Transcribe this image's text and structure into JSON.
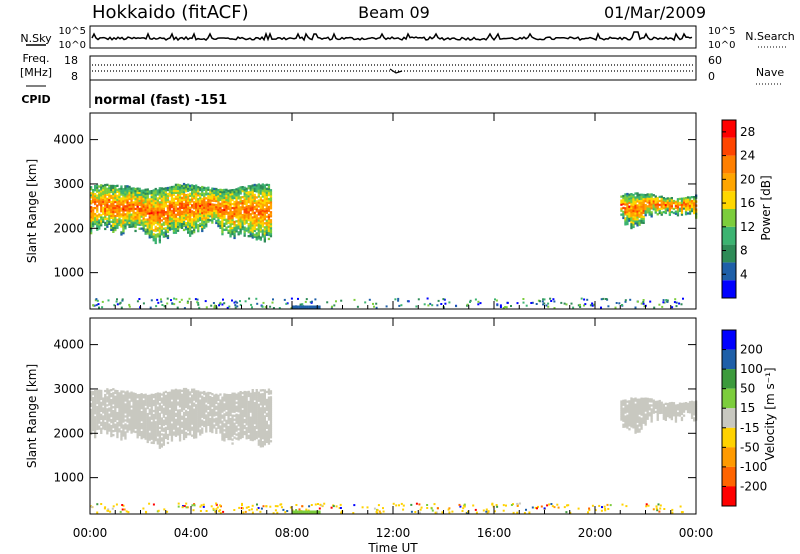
{
  "header": {
    "station": "Hokkaido (fitACF)",
    "beam": "Beam 09",
    "date": "01/Mar/2009"
  },
  "top_panels": {
    "nsky_label": "N.Sky",
    "nsearch_label": "N.Search",
    "noise_ticks": [
      "10^5",
      "10^0"
    ],
    "freq_label": "Freq.",
    "freq_unit": "[MHz]",
    "freq_ticks": [
      "18",
      "8"
    ],
    "nave_label": "Nave",
    "nave_ticks": [
      "60",
      "0"
    ],
    "cpid_label": "CPID",
    "cpid_value": "normal (fast) -151"
  },
  "colors": {
    "power_scale": [
      "#0000ff",
      "#1e5fa8",
      "#2e8b57",
      "#3cb371",
      "#7ccd3c",
      "#ffd700",
      "#ffa500",
      "#ff7f00",
      "#ff4500",
      "#ff0000"
    ],
    "velocity_scale": [
      "#ff0000",
      "#ff6400",
      "#ff9a00",
      "#ffd200",
      "#c8c8c0",
      "#7ccd3c",
      "#3c9a3c",
      "#1e5fa8",
      "#0000ff"
    ],
    "ground_scatter": "#c8c8c0"
  },
  "chart_data": [
    {
      "type": "heatmap",
      "panel": "power",
      "ylabel": "Slant Range [km]",
      "xlabel": "Time UT",
      "x_ticks": [
        "00:00",
        "04:00",
        "08:00",
        "12:00",
        "16:00",
        "20:00",
        "00:00"
      ],
      "xlim_hours": [
        0,
        24
      ],
      "y_ticks": [
        1000,
        2000,
        3000,
        4000
      ],
      "ylim": [
        180,
        4600
      ],
      "colorbar_label": "Power [dB]",
      "colorbar_ticks": [
        4,
        8,
        12,
        16,
        20,
        24,
        28
      ],
      "colorbar_range": [
        0,
        30
      ],
      "regions": [
        {
          "t_start": 0.0,
          "t_end": 7.2,
          "r_min": 1650,
          "r_max": 3000,
          "peak_db": 24
        },
        {
          "t_start": 21.0,
          "t_end": 24.0,
          "r_min": 2000,
          "r_max": 2800,
          "peak_db": 24
        }
      ]
    },
    {
      "type": "heatmap",
      "panel": "velocity",
      "ylabel": "Slant Range [km]",
      "xlabel": "Time UT",
      "x_ticks": [
        "00:00",
        "04:00",
        "08:00",
        "12:00",
        "16:00",
        "20:00",
        "00:00"
      ],
      "xlim_hours": [
        0,
        24
      ],
      "y_ticks": [
        1000,
        2000,
        3000,
        4000
      ],
      "ylim": [
        180,
        4600
      ],
      "colorbar_label": "Velocity [m s⁻¹]",
      "colorbar_ticks": [
        200,
        100,
        50,
        15,
        -15,
        -50,
        -100,
        -200
      ],
      "regions": [
        {
          "t_start": 0.0,
          "t_end": 7.2,
          "r_min": 1650,
          "r_max": 3000,
          "velocity": "ground scatter"
        },
        {
          "t_start": 21.0,
          "t_end": 24.0,
          "r_min": 2000,
          "r_max": 2800,
          "velocity": "ground scatter"
        }
      ]
    }
  ]
}
